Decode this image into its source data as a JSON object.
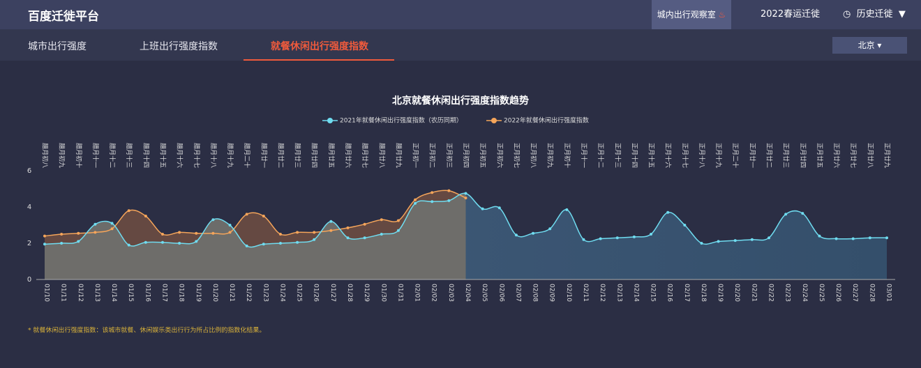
{
  "header": {
    "logo": "百度迁徙平台",
    "menu": [
      "城内出行观察室",
      "2022春运迁徙",
      "历史迁徙"
    ]
  },
  "tabs": [
    "城市出行强度",
    "上班出行强度指数",
    "就餐休闲出行强度指数"
  ],
  "city": "北京",
  "footnote": "* 就餐休闲出行强度指数：该城市就餐、休闲娱乐类出行行为所占比例的指数化结果。",
  "chart_data": {
    "type": "line",
    "title": "北京就餐休闲出行强度指数趋势",
    "categories": [
      "01/10",
      "01/11",
      "01/12",
      "01/13",
      "01/14",
      "01/15",
      "01/16",
      "01/17",
      "01/18",
      "01/19",
      "01/20",
      "01/21",
      "01/22",
      "01/23",
      "01/24",
      "01/25",
      "01/26",
      "01/27",
      "01/28",
      "01/29",
      "01/30",
      "01/31",
      "02/01",
      "02/02",
      "02/03",
      "02/04",
      "02/05",
      "02/06",
      "02/07",
      "02/08",
      "02/09",
      "02/10",
      "02/11",
      "02/12",
      "02/13",
      "02/14",
      "02/15",
      "02/16",
      "02/17",
      "02/18",
      "02/19",
      "02/20",
      "02/21",
      "02/22",
      "02/23",
      "02/24",
      "02/25",
      "02/26",
      "02/27",
      "02/28",
      "03/01"
    ],
    "lunar": [
      "腊月初八",
      "腊月初九",
      "腊月初十",
      "腊月十一",
      "腊月十二",
      "腊月十三",
      "腊月十四",
      "腊月十五",
      "腊月十六",
      "腊月十七",
      "腊月十八",
      "腊月十九",
      "腊月二十",
      "腊月廿一",
      "腊月廿二",
      "腊月廿三",
      "腊月廿四",
      "腊月廿五",
      "腊月廿六",
      "腊月廿七",
      "腊月廿八",
      "腊月廿九",
      "正月初一",
      "正月初二",
      "正月初三",
      "正月初四",
      "正月初五",
      "正月初六",
      "正月初七",
      "正月初八",
      "正月初九",
      "正月初十",
      "正月十一",
      "正月十二",
      "正月十三",
      "正月十四",
      "正月十五",
      "正月十六",
      "正月十七",
      "正月十八",
      "正月十九",
      "正月二十",
      "正月廿一",
      "正月廿二",
      "正月廿三",
      "正月廿四",
      "正月廿五",
      "正月廿六",
      "正月廿七",
      "正月廿八",
      "正月廿九"
    ],
    "series": [
      {
        "name": "2021年就餐休闲出行强度指数（农历同期）",
        "color": "#6fdcf0",
        "values": [
          1.95,
          2.0,
          2.1,
          3.05,
          3.1,
          1.9,
          2.05,
          2.05,
          2.0,
          2.1,
          3.3,
          3.0,
          1.85,
          1.95,
          2.0,
          2.05,
          2.2,
          3.2,
          2.3,
          2.3,
          2.5,
          2.7,
          4.2,
          4.3,
          4.35,
          4.75,
          3.9,
          3.95,
          2.45,
          2.55,
          2.8,
          3.85,
          2.2,
          2.25,
          2.3,
          2.35,
          2.5,
          3.7,
          3.0,
          2.0,
          2.1,
          2.15,
          2.2,
          2.3,
          3.6,
          3.65,
          2.4,
          2.25,
          2.25,
          2.3,
          2.3
        ]
      },
      {
        "name": "2022年就餐休闲出行强度指数",
        "color": "#f5a55a",
        "values": [
          2.4,
          2.5,
          2.55,
          2.6,
          2.8,
          3.8,
          3.5,
          2.5,
          2.6,
          2.55,
          2.55,
          2.6,
          3.6,
          3.5,
          2.5,
          2.6,
          2.6,
          2.7,
          2.85,
          3.05,
          3.3,
          3.25,
          4.4,
          4.8,
          4.9,
          4.5,
          null,
          null,
          null,
          null,
          null,
          null,
          null,
          null,
          null,
          null,
          null,
          null,
          null,
          null,
          null,
          null,
          null,
          null,
          null,
          null,
          null,
          null,
          null,
          null,
          null
        ]
      }
    ],
    "ylim": [
      0,
      6
    ],
    "yticks": [
      0,
      2,
      4,
      6
    ]
  }
}
